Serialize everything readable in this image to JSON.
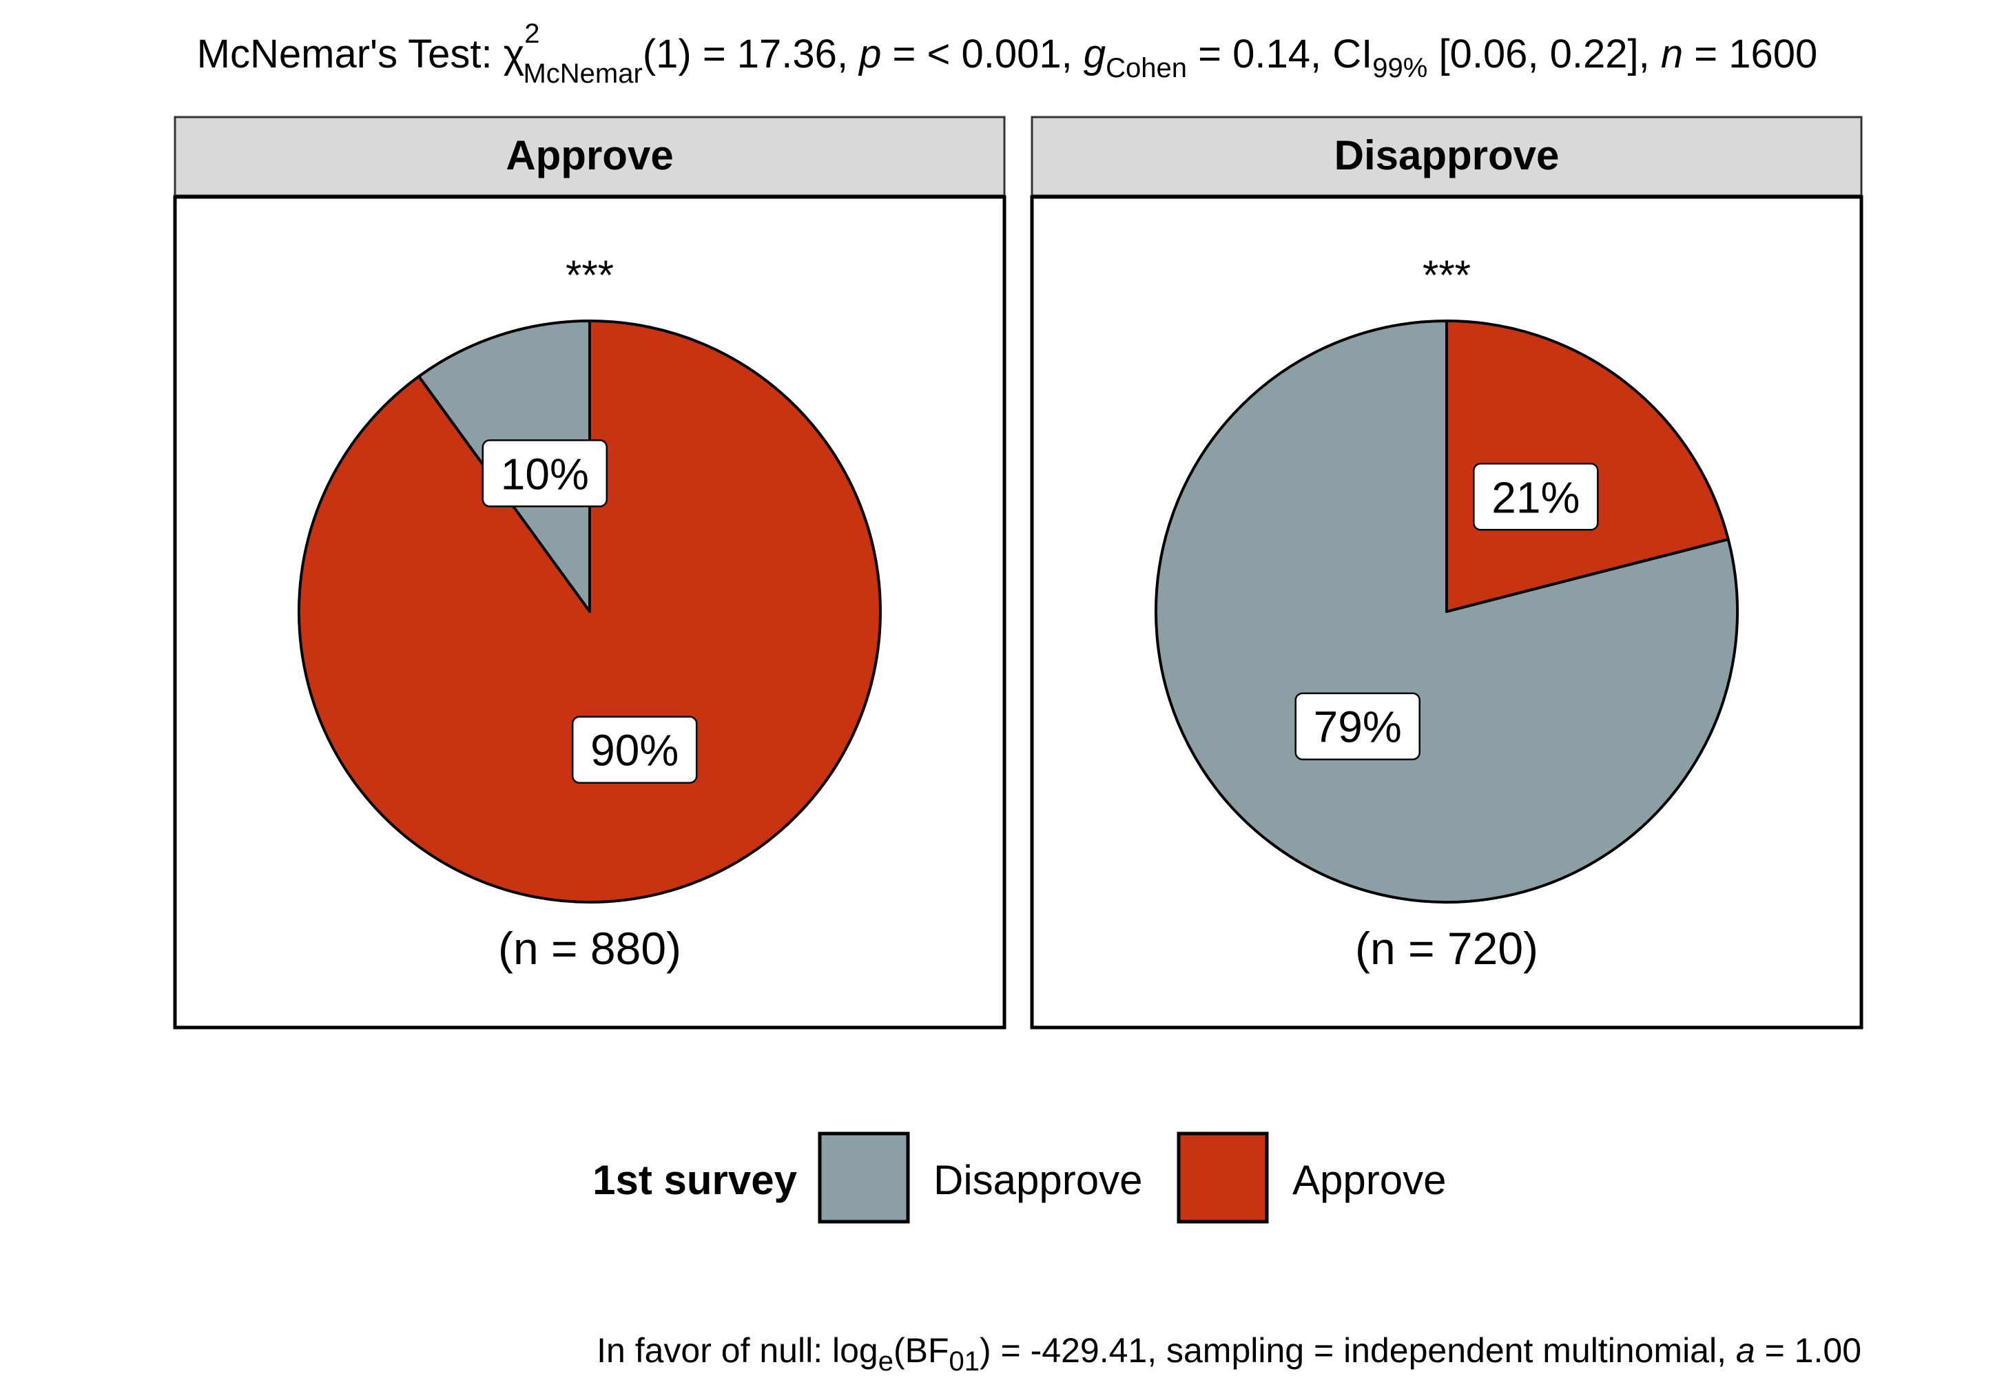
{
  "chart_data": {
    "type": "pie",
    "title": {
      "prefix": "McNemar's Test: ",
      "chi": "χ",
      "chi_sup": "2",
      "chi_sub": "McNemar",
      "df_and_stat": "(1) = 17.36, ",
      "p_symbol": "p",
      "p_value": " = < 0.001, ",
      "g_symbol": "g",
      "g_sub": "Cohen",
      "g_value": " = 0.14, ",
      "ci_symbol": "CI",
      "ci_sub": "99%",
      "ci_value": " [0.06, 0.22], ",
      "n_symbol": "n",
      "n_value": " = 1600"
    },
    "caption": {
      "prefix": "In favor of null: log",
      "log_sub": "e",
      "bf": "(BF",
      "bf_sub": "01",
      "rest": ") = -429.41, sampling = independent multinomial, ",
      "a_symbol": "a",
      "a_value": " = 1.00"
    },
    "legend": {
      "title": "1st survey",
      "placement": "bottom",
      "items": [
        {
          "label": "Disapprove",
          "color": "#8c9fa5"
        },
        {
          "label": "Approve",
          "color": "#c83312"
        }
      ]
    },
    "panels": [
      {
        "facet": "Approve",
        "significance": "***",
        "n_label": "(n = 880)",
        "slices": [
          {
            "category": "Disapprove",
            "percent": 10,
            "label": "10%"
          },
          {
            "category": "Approve",
            "percent": 90,
            "label": "90%"
          }
        ]
      },
      {
        "facet": "Disapprove",
        "significance": "***",
        "n_label": "(n = 720)",
        "slices": [
          {
            "category": "Disapprove",
            "percent": 79,
            "label": "79%"
          },
          {
            "category": "Approve",
            "percent": 21,
            "label": "21%"
          }
        ]
      }
    ]
  }
}
